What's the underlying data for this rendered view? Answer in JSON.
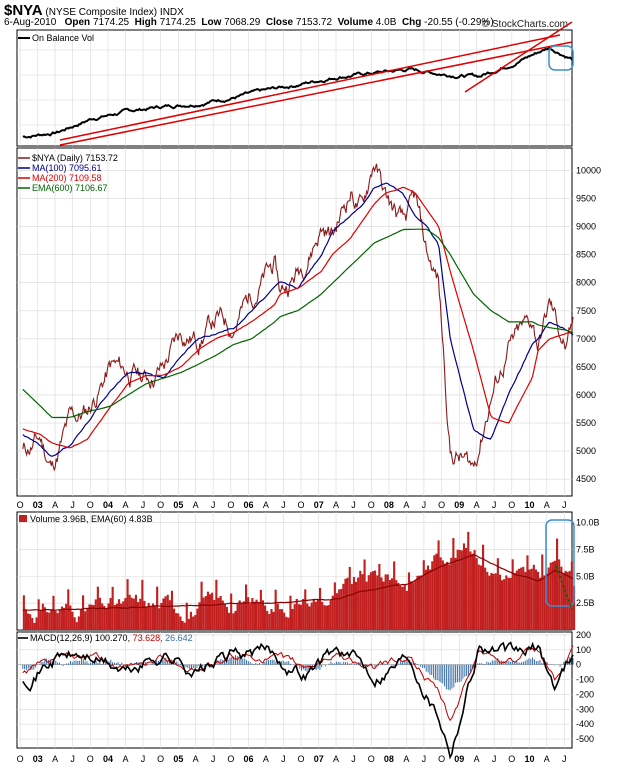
{
  "header": {
    "symbol": "$NYA",
    "name": "(NYSE Composite Index)",
    "exchange": "INDX",
    "date": "6-Aug-2010",
    "open_label": "Open",
    "open": "7174.25",
    "high_label": "High",
    "high": "7174.25",
    "low_label": "Low",
    "low": "7068.29",
    "close_label": "Close",
    "close": "7153.72",
    "volume_label": "Volume",
    "volume": "4.0B",
    "chg_label": "Chg",
    "chg": "-20.55 (-0.29%)",
    "credit": "© StockCharts.com"
  },
  "colors": {
    "price": "#8b1a1a",
    "ma100": "#00008b",
    "ma200": "#e00000",
    "ema600": "#006400",
    "obv": "#000000",
    "trendline": "#e00000",
    "volume_bar": "#c22020",
    "macd": "#000000",
    "signal": "#c00000",
    "hist": "#3a6ea5",
    "highlight": "#3a8ed0"
  },
  "chart_data": [
    {
      "type": "line",
      "panel": "obv",
      "legend": [
        "On Balance Vol"
      ],
      "x": [
        "2002-10",
        "2003-04",
        "2003-10",
        "2004-04",
        "2004-10",
        "2005-04",
        "2005-10",
        "2006-04",
        "2006-10",
        "2007-04",
        "2007-10",
        "2008-04",
        "2008-10",
        "2009-04",
        "2009-10",
        "2010-04",
        "2010-08"
      ],
      "series": [
        {
          "name": "On Balance Vol",
          "values": [
            0.08,
            0.12,
            0.24,
            0.3,
            0.34,
            0.37,
            0.42,
            0.48,
            0.54,
            0.6,
            0.63,
            0.66,
            0.62,
            0.6,
            0.72,
            0.85,
            0.75
          ]
        }
      ],
      "grid": true
    },
    {
      "type": "line",
      "panel": "price",
      "legend": [
        "$NYA (Daily) 7153.72",
        "MA(100) 7095.61",
        "MA(200) 7109.58",
        "EMA(600) 7106.67"
      ],
      "x": [
        "2002-10",
        "2003-01",
        "2003-03",
        "2003-06",
        "2003-09",
        "2004-01",
        "2004-04",
        "2004-07",
        "2004-10",
        "2005-01",
        "2005-04",
        "2005-07",
        "2005-10",
        "2006-01",
        "2006-05",
        "2006-06",
        "2006-09",
        "2007-01",
        "2007-03",
        "2007-06",
        "2007-08",
        "2007-10",
        "2007-12",
        "2008-03",
        "2008-05",
        "2008-07",
        "2008-09",
        "2008-11",
        "2009-03",
        "2009-06",
        "2009-09",
        "2010-01",
        "2010-02",
        "2010-04",
        "2010-07",
        "2010-08"
      ],
      "series": [
        {
          "name": "$NYA (Daily)",
          "values": [
            5000,
            5200,
            4700,
            5500,
            5700,
            6500,
            6400,
            6300,
            6500,
            7100,
            7000,
            7350,
            7250,
            7800,
            8300,
            7800,
            8200,
            9000,
            8850,
            9650,
            9300,
            10200,
            9500,
            9000,
            9400,
            8500,
            8000,
            5000,
            4700,
            6000,
            6800,
            7300,
            6900,
            7600,
            6800,
            7153.72
          ]
        },
        {
          "name": "MA(100)",
          "values": [
            5300,
            5100,
            4900,
            5100,
            5500,
            6100,
            6400,
            6400,
            6300,
            6700,
            7000,
            7100,
            7200,
            7500,
            7900,
            8000,
            7900,
            8500,
            8900,
            9200,
            9400,
            9700,
            9800,
            9600,
            9200,
            9000,
            8700,
            7000,
            5400,
            5200,
            6000,
            6900,
            7000,
            7300,
            7150,
            7095.61
          ]
        },
        {
          "name": "MA(200)",
          "values": [
            5400,
            5300,
            5150,
            5050,
            5200,
            5800,
            6200,
            6350,
            6350,
            6500,
            6800,
            7000,
            7100,
            7300,
            7600,
            7800,
            7900,
            8200,
            8500,
            8800,
            9100,
            9400,
            9600,
            9700,
            9600,
            9300,
            9000,
            8200,
            6800,
            5600,
            5500,
            6300,
            6800,
            7000,
            7100,
            7109.58
          ]
        },
        {
          "name": "EMA(600)",
          "values": [
            6100,
            5800,
            5600,
            5600,
            5700,
            5800,
            6000,
            6200,
            6300,
            6400,
            6550,
            6700,
            6900,
            7000,
            7300,
            7400,
            7500,
            7800,
            8000,
            8300,
            8500,
            8700,
            8800,
            8950,
            8950,
            8950,
            8800,
            8500,
            7800,
            7500,
            7300,
            7300,
            7250,
            7200,
            7150,
            7106.67
          ]
        }
      ],
      "ylim": [
        4200,
        10400
      ],
      "yticks": [
        "4500",
        "5000",
        "5500",
        "6000",
        "6500",
        "7000",
        "7500",
        "8000",
        "8500",
        "9000",
        "9500",
        "10000"
      ],
      "xticks": [
        "O",
        "03",
        "A",
        "J",
        "O",
        "04",
        "A",
        "J",
        "O",
        "05",
        "A",
        "J",
        "O",
        "06",
        "A",
        "J",
        "O",
        "07",
        "A",
        "J",
        "O",
        "08",
        "A",
        "J",
        "O",
        "09",
        "A",
        "J",
        "O",
        "10",
        "A",
        "J"
      ],
      "grid": true
    },
    {
      "type": "bar",
      "panel": "volume",
      "legend": [
        "Volume 3.96B, EMA(60) 4.83B"
      ],
      "x": [
        "2002-10",
        "2003-04",
        "2003-10",
        "2004-04",
        "2004-10",
        "2005-04",
        "2005-10",
        "2006-04",
        "2006-10",
        "2007-04",
        "2007-08",
        "2008-01",
        "2008-04",
        "2008-10",
        "2009-03",
        "2009-06",
        "2009-10",
        "2010-02",
        "2010-05",
        "2010-08"
      ],
      "series": [
        {
          "name": "Volume",
          "values": [
            1.8,
            1.9,
            2.0,
            2.1,
            2.2,
            2.3,
            2.4,
            2.6,
            2.8,
            3.0,
            4.5,
            5.0,
            4.5,
            7.5,
            8.0,
            6.0,
            5.0,
            4.5,
            6.5,
            3.96
          ]
        },
        {
          "name": "EMA(60)",
          "values": [
            1.8,
            1.9,
            2.0,
            2.1,
            2.2,
            2.3,
            2.4,
            2.5,
            2.7,
            2.9,
            3.6,
            4.2,
            4.3,
            6.0,
            7.0,
            6.2,
            5.2,
            4.6,
            5.6,
            4.83
          ]
        }
      ],
      "ylim": [
        0,
        11
      ],
      "yticks": [
        "2.5B",
        "5.0B",
        "7.5B",
        "10.0B"
      ],
      "grid": true
    },
    {
      "type": "line",
      "panel": "macd",
      "legend": [
        "MACD(12,26,9)",
        "100.270",
        "73.628",
        "26.642"
      ],
      "x": [
        "2002-10",
        "2003-04",
        "2003-10",
        "2004-04",
        "2004-10",
        "2005-04",
        "2005-10",
        "2006-04",
        "2006-10",
        "2007-04",
        "2007-10",
        "2008-04",
        "2008-09",
        "2008-11",
        "2009-04",
        "2009-10",
        "2010-02",
        "2010-05",
        "2010-08"
      ],
      "series": [
        {
          "name": "MACD",
          "values": [
            -80,
            60,
            50,
            -60,
            80,
            -40,
            60,
            80,
            -50,
            100,
            -60,
            80,
            -300,
            -550,
            150,
            50,
            100,
            -150,
            100.27
          ]
        },
        {
          "name": "Signal",
          "values": [
            -60,
            40,
            40,
            -40,
            60,
            -30,
            40,
            60,
            -30,
            80,
            -40,
            60,
            -200,
            -400,
            100,
            40,
            80,
            -100,
            73.628
          ]
        },
        {
          "name": "Histogram",
          "values": [
            -20,
            20,
            10,
            -20,
            20,
            -10,
            20,
            20,
            -20,
            20,
            -20,
            20,
            -100,
            -150,
            50,
            10,
            20,
            -50,
            26.642
          ]
        }
      ],
      "ylim": [
        -560,
        220
      ],
      "yticks": [
        "200",
        "100",
        "0",
        "-100",
        "-200",
        "-300",
        "-400",
        "-500"
      ],
      "grid": true
    }
  ]
}
